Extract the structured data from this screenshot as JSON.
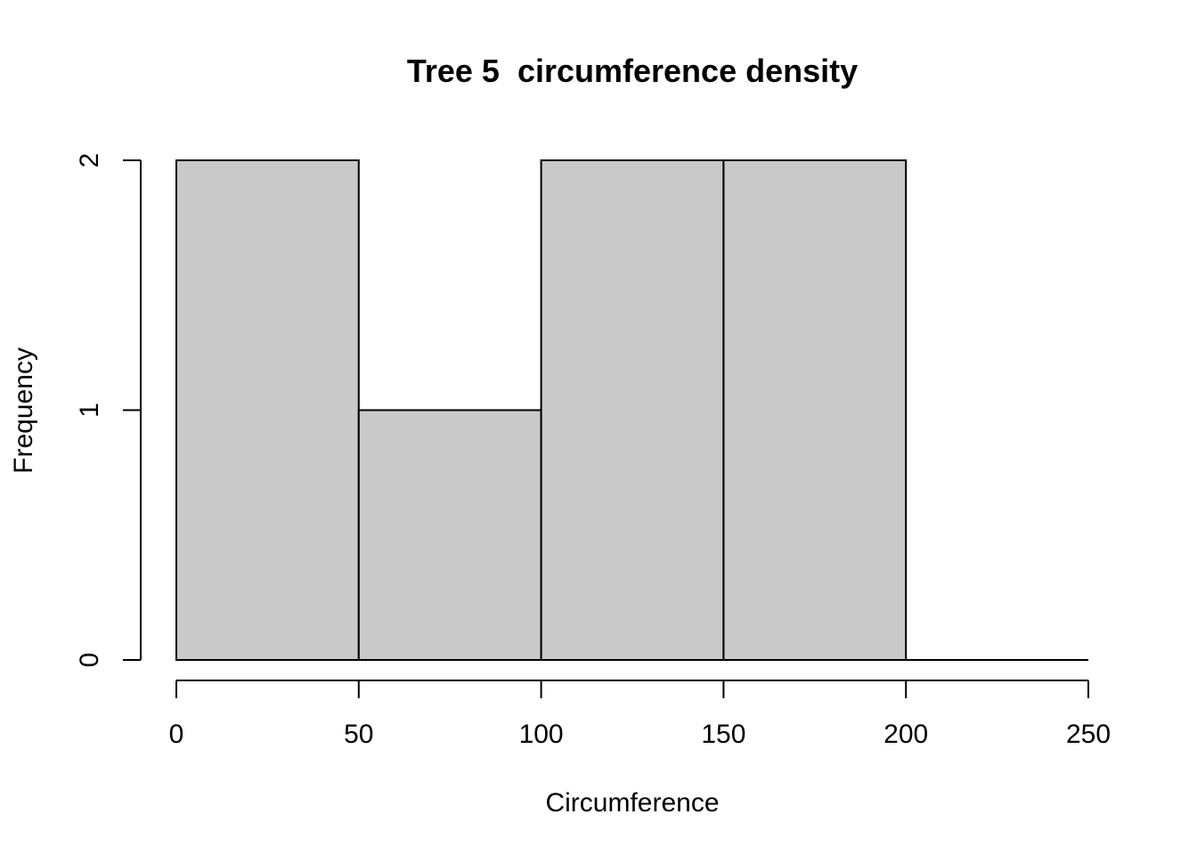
{
  "chart_data": {
    "type": "bar",
    "title": "Tree 5  circumference density",
    "xlabel": "Circumference",
    "ylabel": "Frequency",
    "bin_edges": [
      0,
      50,
      100,
      150,
      200,
      250
    ],
    "values": [
      2,
      1,
      2,
      2,
      0
    ],
    "xlim": [
      0,
      250
    ],
    "ylim": [
      0,
      2
    ],
    "x_ticks": [
      0,
      50,
      100,
      150,
      200,
      250
    ],
    "y_ticks": [
      0,
      1,
      2
    ],
    "colors": {
      "bar_fill": "#c9c9c9",
      "bar_stroke": "#000000"
    },
    "grid": false
  }
}
